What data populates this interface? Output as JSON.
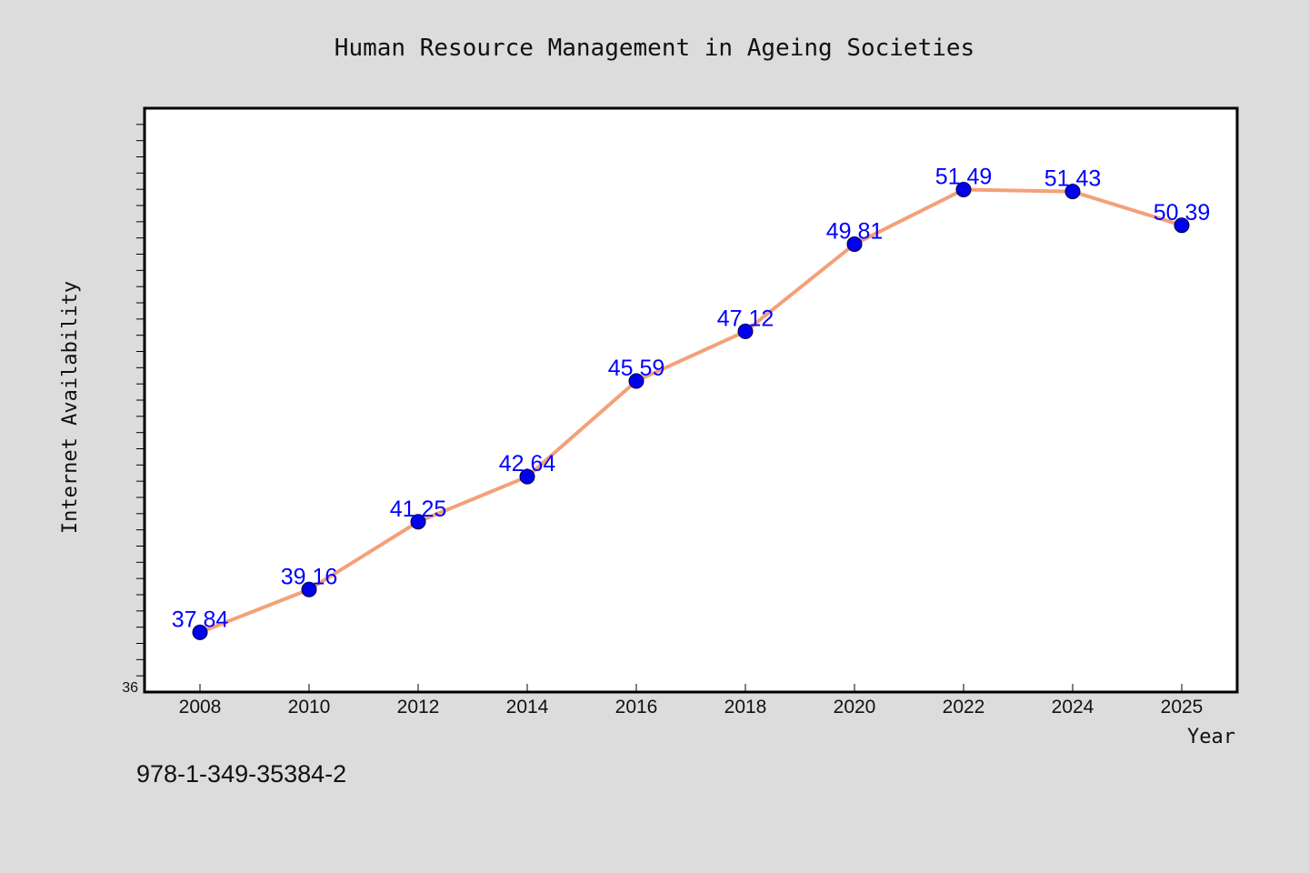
{
  "chart_data": {
    "type": "line",
    "title": "Human Resource Management in Ageing Societies",
    "xlabel": "Year",
    "ylabel": "Internet Availability",
    "x": [
      "2008",
      "2010",
      "2012",
      "2014",
      "2016",
      "2018",
      "2020",
      "2022",
      "2024",
      "2025"
    ],
    "series": [
      {
        "values": [
          37.84,
          39.16,
          41.25,
          42.64,
          45.59,
          47.12,
          49.81,
          51.49,
          51.43,
          50.39
        ],
        "data_labels": [
          "37.84",
          "39.16",
          "41.25",
          "42.64",
          "45.59",
          "47.12",
          "49.81",
          "51.49",
          "51.43",
          "50.39"
        ],
        "line_color": "#f4a07a",
        "marker_color": "#0000ee"
      }
    ],
    "ylim": [
      36,
      54
    ],
    "yticks_labeled": [
      "36"
    ],
    "grid": false,
    "legend": "none"
  },
  "footer": {
    "isbn": "978-1-349-35384-2"
  },
  "colors": {
    "background": "#dcdcdc",
    "plot_background": "#ffffff",
    "label_color": "#0000ff"
  }
}
